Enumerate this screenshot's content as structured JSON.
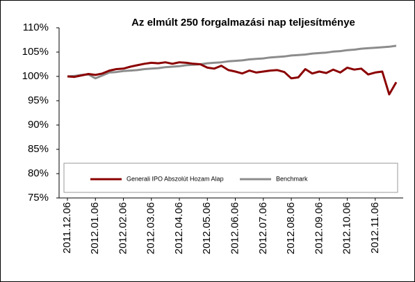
{
  "chart_data": {
    "type": "line",
    "title": "Az elmúlt 250 forgalmazási nap teljesítménye",
    "categories": [
      "2011.12.06",
      null,
      null,
      null,
      "2012.01.06",
      null,
      null,
      null,
      "2012.02.06",
      null,
      null,
      null,
      "2012.03.06",
      null,
      null,
      null,
      "2012.04.06",
      null,
      null,
      null,
      "2012.05.06",
      null,
      null,
      null,
      "2012.06.06",
      null,
      null,
      null,
      "2012.07.06",
      null,
      null,
      null,
      "2012.08.06",
      null,
      null,
      null,
      "2012.09.06",
      null,
      null,
      null,
      "2012.10.06",
      null,
      null,
      null,
      "2012.11.06",
      null,
      null,
      null
    ],
    "series": [
      {
        "name": "Generali IPO Abszolút Hozam Alap",
        "color": "#8b0000",
        "values": [
          100,
          99.9,
          100.2,
          100.5,
          100.3,
          100.6,
          101.2,
          101.5,
          101.6,
          102.0,
          102.3,
          102.6,
          102.8,
          102.7,
          102.9,
          102.6,
          102.9,
          102.8,
          102.6,
          102.5,
          101.8,
          101.6,
          102.2,
          101.3,
          101.0,
          100.6,
          101.2,
          100.8,
          101.0,
          101.2,
          101.3,
          100.9,
          99.6,
          99.8,
          101.5,
          100.6,
          101.0,
          100.7,
          101.4,
          100.8,
          101.8,
          101.4,
          101.6,
          100.4,
          100.8,
          101.0,
          96.3,
          98.8
        ]
      },
      {
        "name": "Benchmark",
        "color": "#8c8c8c",
        "values": [
          100.0,
          100.1,
          100.3,
          100.4,
          99.6,
          100.2,
          100.8,
          100.9,
          101.1,
          101.2,
          101.3,
          101.5,
          101.6,
          101.7,
          101.9,
          102.0,
          102.1,
          102.3,
          102.4,
          102.5,
          102.7,
          102.8,
          102.9,
          103.1,
          103.2,
          103.3,
          103.5,
          103.6,
          103.7,
          103.9,
          104.0,
          104.1,
          104.3,
          104.4,
          104.5,
          104.7,
          104.8,
          104.9,
          105.1,
          105.2,
          105.4,
          105.5,
          105.7,
          105.8,
          105.9,
          106.0,
          106.1,
          106.3
        ]
      }
    ],
    "ylim": [
      75,
      110
    ],
    "yticks": [
      {
        "value": 75,
        "label": "75%"
      },
      {
        "value": 80,
        "label": "80%"
      },
      {
        "value": 85,
        "label": "85%"
      },
      {
        "value": 90,
        "label": "90%"
      },
      {
        "value": 95,
        "label": "95%"
      },
      {
        "value": 100,
        "label": "100%"
      },
      {
        "value": 105,
        "label": "105%"
      },
      {
        "value": 110,
        "label": "110%"
      }
    ],
    "grid": false,
    "legend": "bottom"
  }
}
